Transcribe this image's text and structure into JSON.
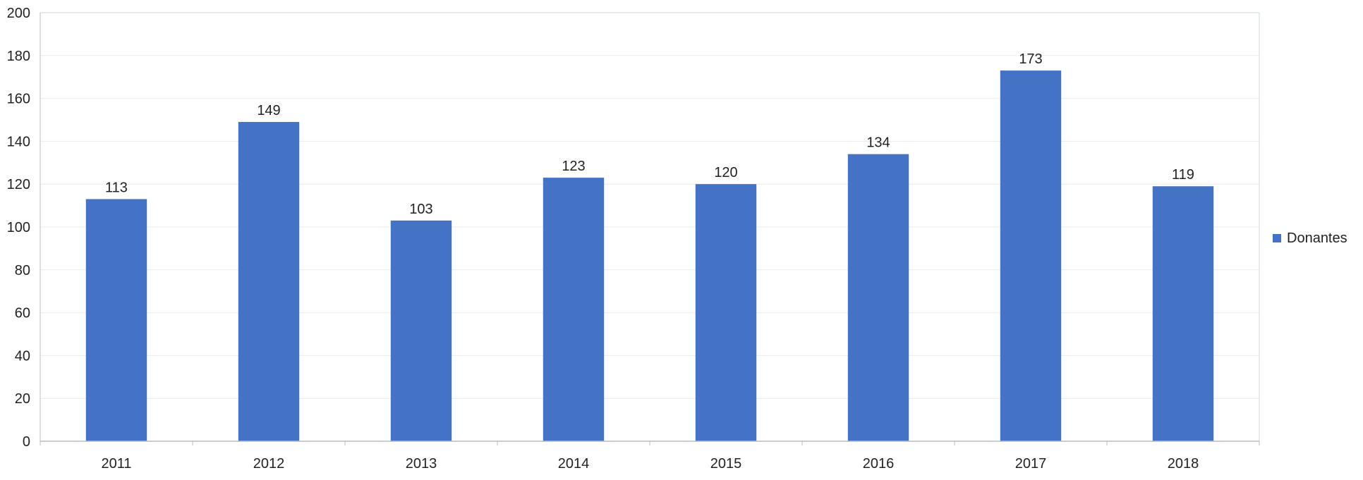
{
  "chart_data": {
    "type": "bar",
    "categories": [
      "2011",
      "2012",
      "2013",
      "2014",
      "2015",
      "2016",
      "2017",
      "2018"
    ],
    "series": [
      {
        "name": "Donantes",
        "values": [
          113,
          149,
          103,
          123,
          120,
          134,
          173,
          119
        ],
        "color": "#4472C4"
      }
    ],
    "title": "",
    "xlabel": "",
    "ylabel": "",
    "ylim": [
      0,
      200
    ],
    "yticks": [
      0,
      20,
      40,
      60,
      80,
      100,
      120,
      140,
      160,
      180,
      200
    ],
    "grid": true,
    "legend_position": "right",
    "data_labels": true
  }
}
